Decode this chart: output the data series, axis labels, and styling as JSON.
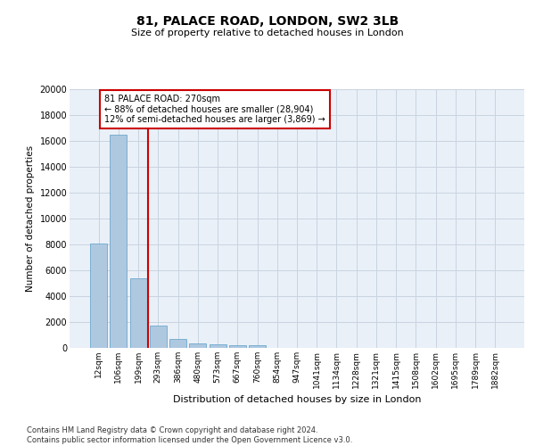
{
  "title": "81, PALACE ROAD, LONDON, SW2 3LB",
  "subtitle": "Size of property relative to detached houses in London",
  "xlabel": "Distribution of detached houses by size in London",
  "ylabel": "Number of detached properties",
  "bar_values": [
    8100,
    16500,
    5350,
    1750,
    700,
    350,
    280,
    200,
    180,
    0,
    0,
    0,
    0,
    0,
    0,
    0,
    0,
    0,
    0,
    0,
    0
  ],
  "bar_labels": [
    "12sqm",
    "106sqm",
    "199sqm",
    "293sqm",
    "386sqm",
    "480sqm",
    "573sqm",
    "667sqm",
    "760sqm",
    "854sqm",
    "947sqm",
    "1041sqm",
    "1134sqm",
    "1228sqm",
    "1321sqm",
    "1415sqm",
    "1508sqm",
    "1602sqm",
    "1695sqm",
    "1789sqm",
    "1882sqm"
  ],
  "bar_color": "#aec8e0",
  "bar_edge_color": "#5a9ec8",
  "vline_x": 2.5,
  "vline_color": "#cc0000",
  "annotation_title": "81 PALACE ROAD: 270sqm",
  "annotation_line1": "← 88% of detached houses are smaller (28,904)",
  "annotation_line2": "12% of semi-detached houses are larger (3,869) →",
  "annotation_box_color": "#cc0000",
  "ylim": [
    0,
    20000
  ],
  "yticks": [
    0,
    2000,
    4000,
    6000,
    8000,
    10000,
    12000,
    14000,
    16000,
    18000,
    20000
  ],
  "grid_color": "#c8d4e0",
  "background_color": "#eaf0f8",
  "footer_line1": "Contains HM Land Registry data © Crown copyright and database right 2024.",
  "footer_line2": "Contains public sector information licensed under the Open Government Licence v3.0."
}
